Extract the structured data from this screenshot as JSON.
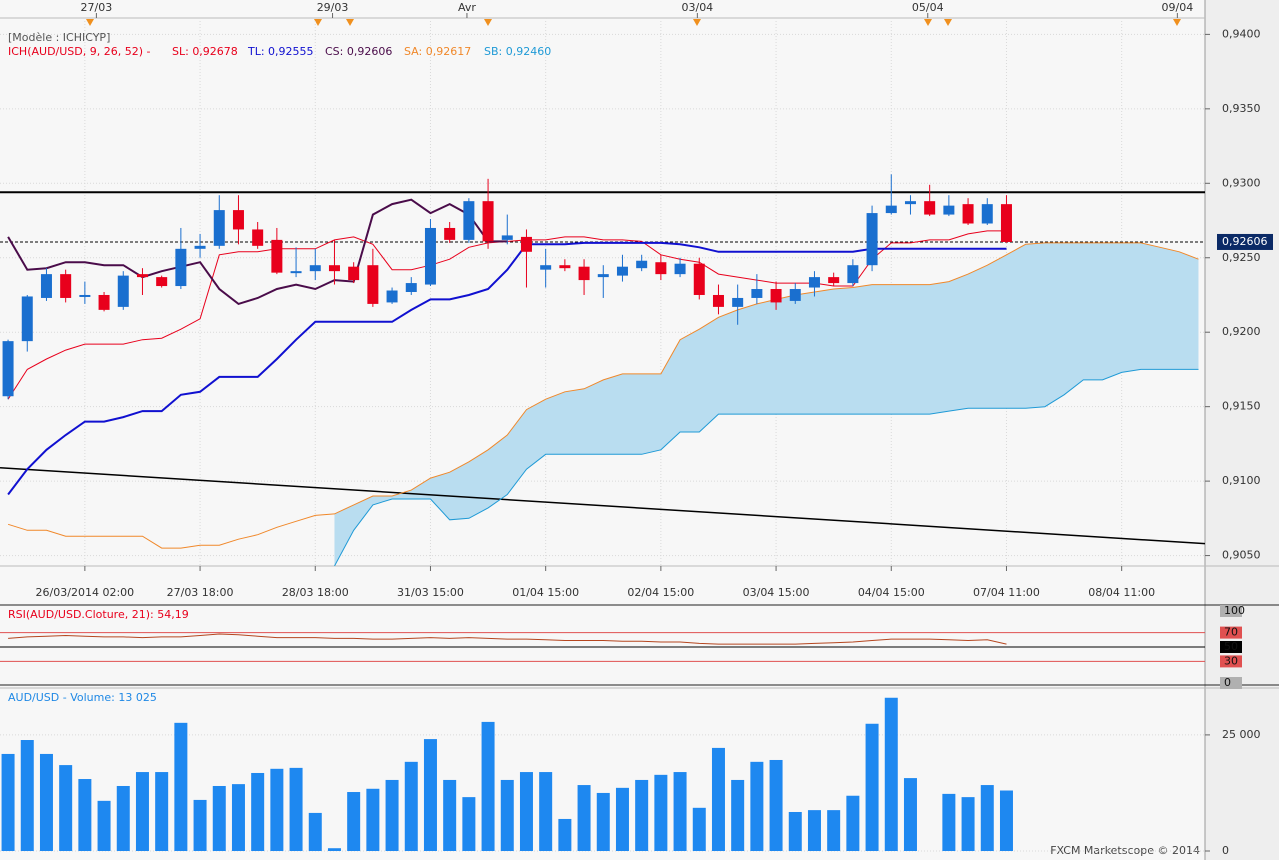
{
  "chart_data": [
    {
      "type": "candlestick",
      "subtitle": "[Modèle : ICHICYP]",
      "indicator": "ICH(AUD/USD, 9, 26, 52) -",
      "indicator_color": "#e8001c",
      "up_color": "#1a6fcf",
      "down_color": "#e8001c",
      "open": [
        0.9157,
        0.9194,
        0.9223,
        0.9239,
        0.9224,
        0.9225,
        0.9217,
        0.9239,
        0.9237,
        0.9231,
        0.9256,
        0.9258,
        0.9282,
        0.9269,
        0.9262,
        0.924,
        0.9241,
        0.9245,
        0.9244,
        0.9245,
        0.922,
        0.9227,
        0.9232,
        0.927,
        0.9262,
        0.9288,
        0.9262,
        0.9264,
        0.9242,
        0.9245,
        0.9244,
        0.9237,
        0.9238,
        0.9243,
        0.9247,
        0.9239,
        0.9246,
        0.9225,
        0.9217,
        0.9223,
        0.9229,
        0.9221,
        0.923,
        0.9237,
        0.9233,
        0.9245,
        0.928,
        0.9286,
        0.9288,
        0.9279,
        0.9286,
        0.9273,
        0.9286
      ],
      "high": [
        0.9195,
        0.9225,
        0.9243,
        0.9242,
        0.9234,
        0.9227,
        0.9241,
        0.9243,
        0.9238,
        0.927,
        0.9266,
        0.9292,
        0.9292,
        0.9274,
        0.927,
        0.9257,
        0.9256,
        0.9262,
        0.9247,
        0.9256,
        0.923,
        0.9237,
        0.9276,
        0.9274,
        0.929,
        0.9303,
        0.9279,
        0.9269,
        0.9256,
        0.9249,
        0.9249,
        0.9245,
        0.9252,
        0.9252,
        0.9252,
        0.925,
        0.925,
        0.9232,
        0.9232,
        0.9239,
        0.9234,
        0.9233,
        0.9241,
        0.924,
        0.9249,
        0.9285,
        0.9306,
        0.9292,
        0.9299,
        0.9292,
        0.929,
        0.929,
        0.9292
      ],
      "low": [
        0.9155,
        0.9187,
        0.9221,
        0.922,
        0.9219,
        0.9214,
        0.9215,
        0.9225,
        0.923,
        0.9229,
        0.925,
        0.9256,
        0.9259,
        0.9256,
        0.9239,
        0.9237,
        0.9235,
        0.9232,
        0.9233,
        0.9217,
        0.9219,
        0.9225,
        0.9231,
        0.926,
        0.926,
        0.9256,
        0.9259,
        0.923,
        0.923,
        0.9241,
        0.9225,
        0.9223,
        0.9234,
        0.9241,
        0.9235,
        0.9237,
        0.9222,
        0.9212,
        0.9205,
        0.9219,
        0.9215,
        0.9219,
        0.9224,
        0.9231,
        0.9231,
        0.9241,
        0.9279,
        0.9279,
        0.9278,
        0.9278,
        0.9272,
        0.9272,
        0.926
      ],
      "close": [
        0.9194,
        0.9224,
        0.9239,
        0.9223,
        0.9225,
        0.9215,
        0.9238,
        0.9237,
        0.9231,
        0.9256,
        0.9258,
        0.9282,
        0.9269,
        0.9258,
        0.924,
        0.9241,
        0.9245,
        0.9241,
        0.9235,
        0.9219,
        0.9228,
        0.9233,
        0.927,
        0.9262,
        0.9288,
        0.9261,
        0.9265,
        0.9254,
        0.9245,
        0.9243,
        0.9235,
        0.9239,
        0.9244,
        0.9248,
        0.9239,
        0.9246,
        0.9225,
        0.9217,
        0.9223,
        0.9229,
        0.922,
        0.9229,
        0.9237,
        0.9233,
        0.9245,
        0.928,
        0.9285,
        0.9288,
        0.9279,
        0.9285,
        0.9273,
        0.9286,
        0.92606
      ],
      "series": [
        {
          "name": "SL: 0,92678",
          "color": "#e8001c",
          "width": 1,
          "values": [
            0.9155,
            0.9175,
            0.9182,
            0.9188,
            0.9192,
            0.9192,
            0.9192,
            0.9195,
            0.9196,
            0.9202,
            0.9209,
            0.9252,
            0.9254,
            0.9254,
            0.9256,
            0.9256,
            0.9256,
            0.9262,
            0.9264,
            0.9259,
            0.9242,
            0.9242,
            0.9245,
            0.9249,
            0.9257,
            0.926,
            0.9261,
            0.9262,
            0.9262,
            0.9264,
            0.9264,
            0.9262,
            0.9262,
            0.9261,
            0.9252,
            0.9249,
            0.9247,
            0.9239,
            0.9237,
            0.9235,
            0.9233,
            0.9233,
            0.9233,
            0.9231,
            0.9231,
            0.9249,
            0.926,
            0.926,
            0.9262,
            0.9262,
            0.9266,
            0.9268,
            0.9268,
            null,
            null,
            null,
            null,
            null,
            null,
            null,
            null,
            null,
            null
          ]
        },
        {
          "name": "TL: 0,92555",
          "color": "#1010d0",
          "width": 2,
          "values": [
            0.9091,
            0.9108,
            0.9121,
            0.9131,
            0.914,
            0.914,
            0.9143,
            0.9147,
            0.9147,
            0.9158,
            0.916,
            0.917,
            0.917,
            0.917,
            0.9182,
            0.9195,
            0.9207,
            0.9207,
            0.9207,
            0.9207,
            0.9207,
            0.9215,
            0.9222,
            0.9222,
            0.9225,
            0.9229,
            0.9242,
            0.9259,
            0.9259,
            0.9259,
            0.926,
            0.926,
            0.926,
            0.926,
            0.926,
            0.9259,
            0.9257,
            0.9254,
            0.9254,
            0.9254,
            0.9254,
            0.9254,
            0.9254,
            0.9254,
            0.9254,
            0.9256,
            0.9256,
            0.9256,
            0.9256,
            0.9256,
            0.9256,
            0.9256,
            0.9256,
            null,
            null,
            null,
            null,
            null,
            null,
            null,
            null,
            null,
            null
          ]
        },
        {
          "name": "CS: 0,92606",
          "color": "#4a0c4a",
          "width": 2,
          "values": [
            0.9264,
            0.9242,
            0.9243,
            0.9247,
            0.9247,
            0.9245,
            0.9245,
            0.9237,
            0.9241,
            0.9244,
            0.9247,
            0.9229,
            0.9219,
            0.9223,
            0.9229,
            0.9232,
            0.9229,
            0.9235,
            0.9234,
            0.9279,
            0.9286,
            0.9289,
            0.928,
            0.9286,
            0.9279,
            0.9261,
            0.9261,
            null,
            null,
            null,
            null,
            null,
            null,
            null,
            null,
            null,
            null,
            null,
            null,
            null,
            null,
            null,
            null,
            null,
            null,
            null,
            null,
            null,
            null,
            null,
            null,
            null,
            null,
            null,
            null,
            null,
            null,
            null,
            null,
            null,
            null,
            null,
            null
          ]
        },
        {
          "name": "SA: 0,92617",
          "color": "#f0882a",
          "width": 1,
          "values": [
            0.9071,
            0.9067,
            0.9067,
            0.9063,
            0.9063,
            0.9063,
            0.9063,
            0.9063,
            0.9055,
            0.9055,
            0.9057,
            0.9057,
            0.9061,
            0.9064,
            0.9069,
            0.9073,
            0.9077,
            0.9078,
            0.9084,
            0.909,
            0.909,
            0.9094,
            0.9102,
            0.9106,
            0.9113,
            0.9121,
            0.9131,
            0.9148,
            0.9155,
            0.916,
            0.9162,
            0.9168,
            0.9172,
            0.9172,
            0.9172,
            0.9195,
            0.9202,
            0.921,
            0.9215,
            0.9219,
            0.9222,
            0.9225,
            0.9227,
            0.9229,
            0.923,
            0.9232,
            0.9232,
            0.9232,
            0.9232,
            0.9234,
            0.9239,
            0.9245,
            0.9252,
            0.9259,
            0.926,
            0.926,
            0.926,
            0.926,
            0.926,
            0.926,
            0.9257,
            0.9254,
            0.9249
          ]
        },
        {
          "name": "SB: 0,92460",
          "color": "#1f9ad6",
          "width": 1,
          "values": [
            null,
            null,
            null,
            null,
            null,
            null,
            null,
            null,
            null,
            null,
            null,
            null,
            null,
            null,
            null,
            null,
            null,
            0.9043,
            0.9067,
            0.9084,
            0.9088,
            0.9088,
            0.9088,
            0.9074,
            0.9075,
            0.9082,
            0.9091,
            0.9108,
            0.9118,
            0.9118,
            0.9118,
            0.9118,
            0.9118,
            0.9118,
            0.9121,
            0.9133,
            0.9133,
            0.9145,
            0.9145,
            0.9145,
            0.9145,
            0.9145,
            0.9145,
            0.9145,
            0.9145,
            0.9145,
            0.9145,
            0.9145,
            0.9145,
            0.9147,
            0.9149,
            0.9149,
            0.9149,
            0.9149,
            0.915,
            0.9158,
            0.9168,
            0.9168,
            0.9173,
            0.9175,
            0.9175,
            0.9175,
            0.9175
          ]
        }
      ],
      "cloud_color": "#b9ddf0",
      "hlines": [
        {
          "value": 0.9294,
          "color": "#000000"
        }
      ],
      "last_price": {
        "value": 0.92606,
        "label": "0,92606",
        "color": "#0b2a66"
      },
      "trendline": {
        "values": [
          0.9109,
          0.9058
        ],
        "color": "#000000"
      },
      "xlim": [
        -0.42,
        62.34
      ],
      "ylim": [
        0.9043,
        0.9411
      ],
      "yticks": [
        {
          "value": 0.94,
          "label": "0,9400"
        },
        {
          "value": 0.935,
          "label": "0,9350"
        },
        {
          "value": 0.93,
          "label": "0,9300"
        },
        {
          "value": 0.925,
          "label": "0,9250"
        },
        {
          "value": 0.92,
          "label": "0,9200"
        },
        {
          "value": 0.915,
          "label": "0,9150"
        },
        {
          "value": 0.91,
          "label": "0,9100"
        },
        {
          "value": 0.905,
          "label": "0,9050"
        }
      ],
      "xticks": [
        {
          "value": 4,
          "label": "26/03/2014 02:00"
        },
        {
          "value": 10,
          "label": "27/03 18:00"
        },
        {
          "value": 16,
          "label": "28/03 18:00"
        },
        {
          "value": 22,
          "label": "31/03 15:00"
        },
        {
          "value": 28,
          "label": "01/04 15:00"
        },
        {
          "value": 34,
          "label": "02/04 15:00"
        },
        {
          "value": 40,
          "label": "03/04 15:00"
        },
        {
          "value": 46,
          "label": "04/04 15:00"
        },
        {
          "value": 52,
          "label": "07/04 11:00"
        },
        {
          "value": 58,
          "label": "08/04 11:00"
        }
      ],
      "x2ticks": [
        {
          "value": 4.6,
          "label": "27/03"
        },
        {
          "value": 16.9,
          "label": "29/03"
        },
        {
          "value": 23.9,
          "label": "Avr"
        },
        {
          "value": 35.9,
          "label": "03/04"
        },
        {
          "value": 47.9,
          "label": "05/04"
        },
        {
          "value": 60.9,
          "label": "09/04"
        }
      ],
      "grid": true
    },
    {
      "type": "line",
      "title": "RSI(AUD/USD.Cloture, 21): 54,19",
      "title_color": "#e8001c",
      "color": "#b5461f",
      "values": [
        62,
        64,
        65,
        66,
        65,
        64,
        64,
        63,
        64,
        64,
        66,
        68,
        67,
        65,
        63,
        63,
        63,
        62,
        62,
        61,
        61,
        62,
        63,
        62,
        63,
        62,
        61,
        61,
        60,
        59,
        59,
        59,
        58,
        58,
        57,
        57,
        55,
        54,
        54,
        54,
        54,
        54,
        55,
        56,
        57,
        59,
        61,
        61,
        61,
        60,
        59,
        60,
        54
      ],
      "ylim": [
        0,
        100
      ],
      "yticks": [
        100,
        70,
        50,
        30,
        0
      ],
      "levels": [
        {
          "value": 70,
          "color": "#e05050"
        },
        {
          "value": 50,
          "color": "#000000"
        },
        {
          "value": 30,
          "color": "#e05050"
        }
      ]
    },
    {
      "type": "bar",
      "title": "AUD/USD - Volume: 13 025",
      "title_color": "#1e88e5",
      "color": "#1e88f0",
      "values": [
        20900,
        23900,
        20900,
        18500,
        15500,
        10800,
        14000,
        17000,
        17000,
        27600,
        11000,
        14000,
        14400,
        16800,
        17700,
        17900,
        8200,
        600,
        12700,
        13400,
        15300,
        19200,
        24100,
        15300,
        11600,
        27800,
        15300,
        17000,
        17000,
        6900,
        14200,
        12500,
        13600,
        15300,
        16400,
        17000,
        9300,
        22200,
        15300,
        19200,
        19600,
        8400,
        8800,
        8800,
        11900,
        27400,
        33000,
        15700,
        0,
        12300,
        11600,
        14200,
        13025
      ],
      "ylim": [
        0,
        35100
      ],
      "yticks": [
        0,
        {
          "value": 25000,
          "label": "25 000"
        }
      ],
      "grid": true
    }
  ],
  "footer": "FXCM Marketscope © 2014"
}
